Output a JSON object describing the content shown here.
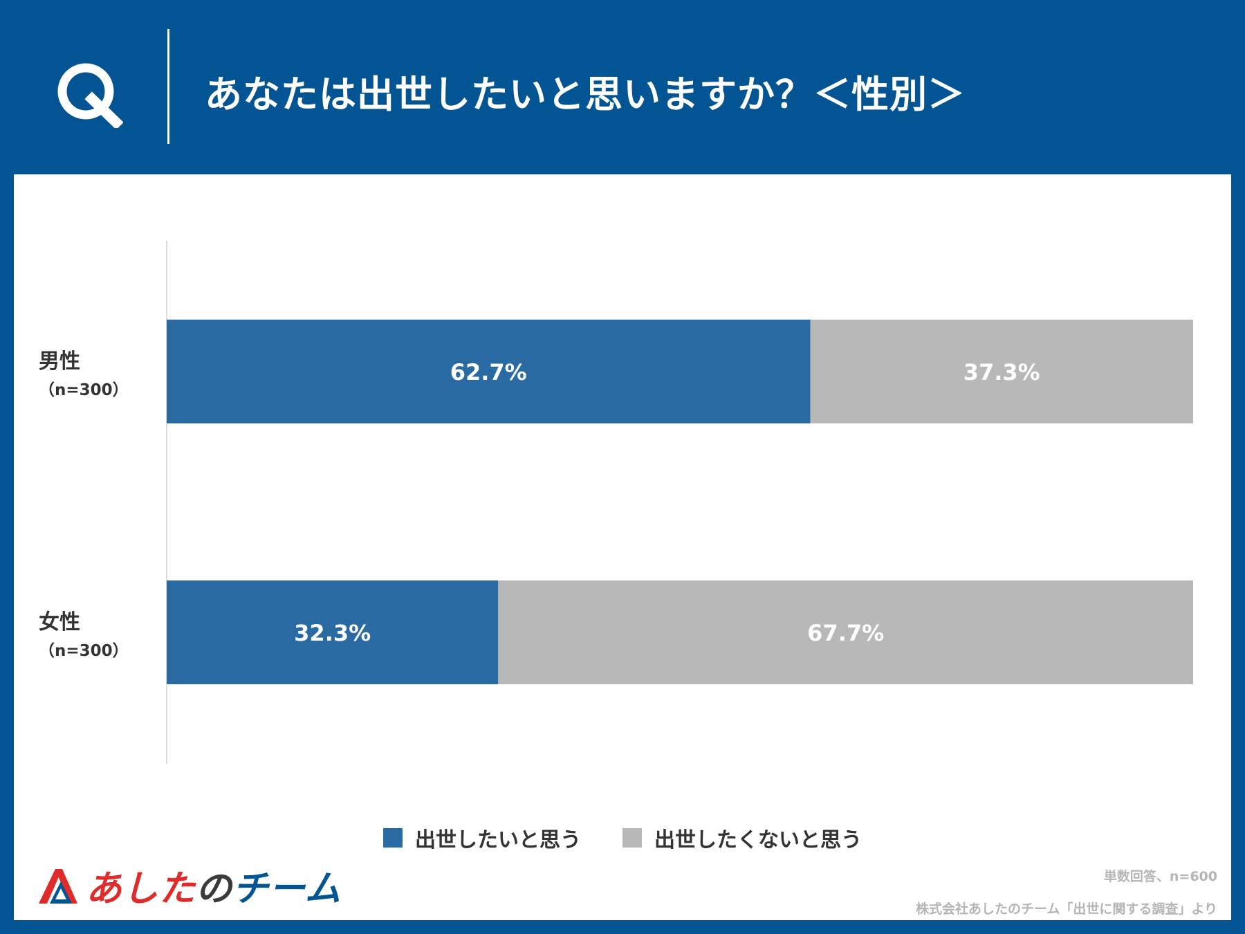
{
  "header": {
    "q_label": "Q",
    "title": "あなたは出世したいと思いますか？＜性別＞"
  },
  "chart_data": {
    "type": "bar",
    "orientation": "horizontal",
    "stacked": true,
    "categories": [
      {
        "label": "男性",
        "sublabel": "（n=300）"
      },
      {
        "label": "女性",
        "sublabel": "（n=300）"
      }
    ],
    "series": [
      {
        "name": "出世したいと思う",
        "color": "#2a6aa3",
        "values": [
          62.7,
          32.3
        ],
        "labels": [
          "62.7%",
          "32.3%"
        ]
      },
      {
        "name": "出世したくないと思う",
        "color": "#b8b8b8",
        "values": [
          37.3,
          67.7
        ],
        "labels": [
          "37.3%",
          "67.7%"
        ]
      }
    ],
    "xlim": [
      0,
      100
    ],
    "grid": false,
    "legend_position": "bottom"
  },
  "footer": {
    "logo_main": "あした",
    "logo_no": "の",
    "logo_team": "チーム",
    "note1": "単数回答、n=600",
    "note2": "株式会社あしたのチーム「出世に関する調査」より"
  }
}
